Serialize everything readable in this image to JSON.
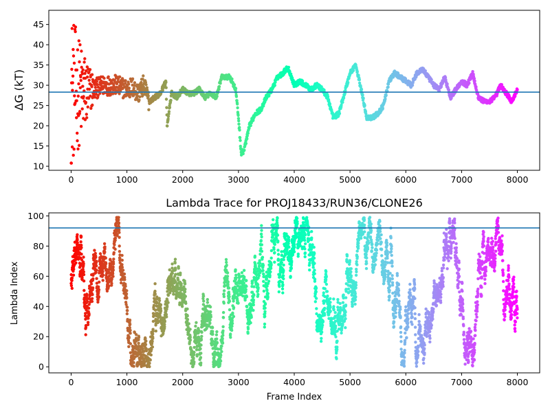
{
  "chart_data": [
    {
      "type": "scatter",
      "title": "",
      "xlabel": "",
      "ylabel": "ΔG (kT)",
      "xlim": [
        -400,
        8400
      ],
      "ylim": [
        9,
        48.5
      ],
      "xticks": [
        "0",
        "1000",
        "2000",
        "3000",
        "4000",
        "5000",
        "6000",
        "7000",
        "8000"
      ],
      "yticks": [
        "10",
        "15",
        "20",
        "25",
        "30",
        "35",
        "40",
        "45"
      ],
      "hline": 28.3,
      "hline_color": "#1f77b4",
      "colormap": "rainbow (red at frame 0 → violet at frame 8000)",
      "series": [
        {
          "x": [
            0,
            200,
            400,
            600,
            800,
            1000,
            1100,
            1200,
            1300,
            1400,
            1500,
            1600,
            1700,
            1720,
            1800,
            1900,
            2000,
            2100,
            2200,
            2300,
            2400,
            2500,
            2600,
            2700,
            2850,
            2950,
            3000,
            3050,
            3100,
            3150,
            3200,
            3300,
            3400,
            3500,
            3600,
            3700,
            3800,
            3850,
            3900,
            4000,
            4100,
            4200,
            4300,
            4400,
            4500,
            4600,
            4700,
            4800,
            4900,
            5000,
            5100,
            5200,
            5300,
            5400,
            5500,
            5600,
            5700,
            5800,
            5900,
            6000,
            6100,
            6200,
            6300,
            6400,
            6500,
            6600,
            6700,
            6800,
            6900,
            7000,
            7100,
            7200,
            7300,
            7400,
            7500,
            7600,
            7700,
            7800,
            7900,
            8000
          ],
          "values": [
            29,
            28,
            29,
            30,
            30,
            29,
            29.5,
            28,
            30,
            26,
            27,
            28,
            31,
            20,
            28,
            27,
            29,
            28,
            28,
            29,
            27,
            28,
            27,
            32,
            32,
            29,
            22,
            13,
            14,
            17,
            20,
            23,
            24,
            27,
            29,
            32,
            33,
            34,
            34,
            30,
            31,
            30,
            29,
            30,
            29,
            27,
            22,
            23,
            28,
            33,
            35,
            29,
            22,
            22,
            23,
            25,
            31,
            33,
            32,
            31,
            30,
            33,
            34,
            32,
            30,
            29,
            32,
            27,
            29,
            31,
            30,
            33,
            27,
            26,
            26,
            27,
            30,
            28,
            26,
            29
          ]
        }
      ]
    },
    {
      "type": "scatter",
      "title": "Lambda Trace for PROJ18433/RUN36/CLONE26",
      "xlabel": "Frame Index",
      "ylabel": "Lambda Index",
      "xlim": [
        -400,
        8400
      ],
      "ylim": [
        -4,
        102
      ],
      "xticks": [
        "0",
        "1000",
        "2000",
        "3000",
        "4000",
        "5000",
        "6000",
        "7000",
        "8000"
      ],
      "yticks": [
        "0",
        "20",
        "40",
        "60",
        "80",
        "100"
      ],
      "hline": 92,
      "hline_color": "#1f77b4",
      "colormap": "rainbow (red at frame 0 → violet at frame 8000)",
      "series": [
        {
          "description_of_values": "lambda index sampled across 0–99 throughout frames 0–8000",
          "x_range": [
            0,
            8000
          ],
          "y_range": [
            0,
            99
          ]
        }
      ]
    }
  ]
}
